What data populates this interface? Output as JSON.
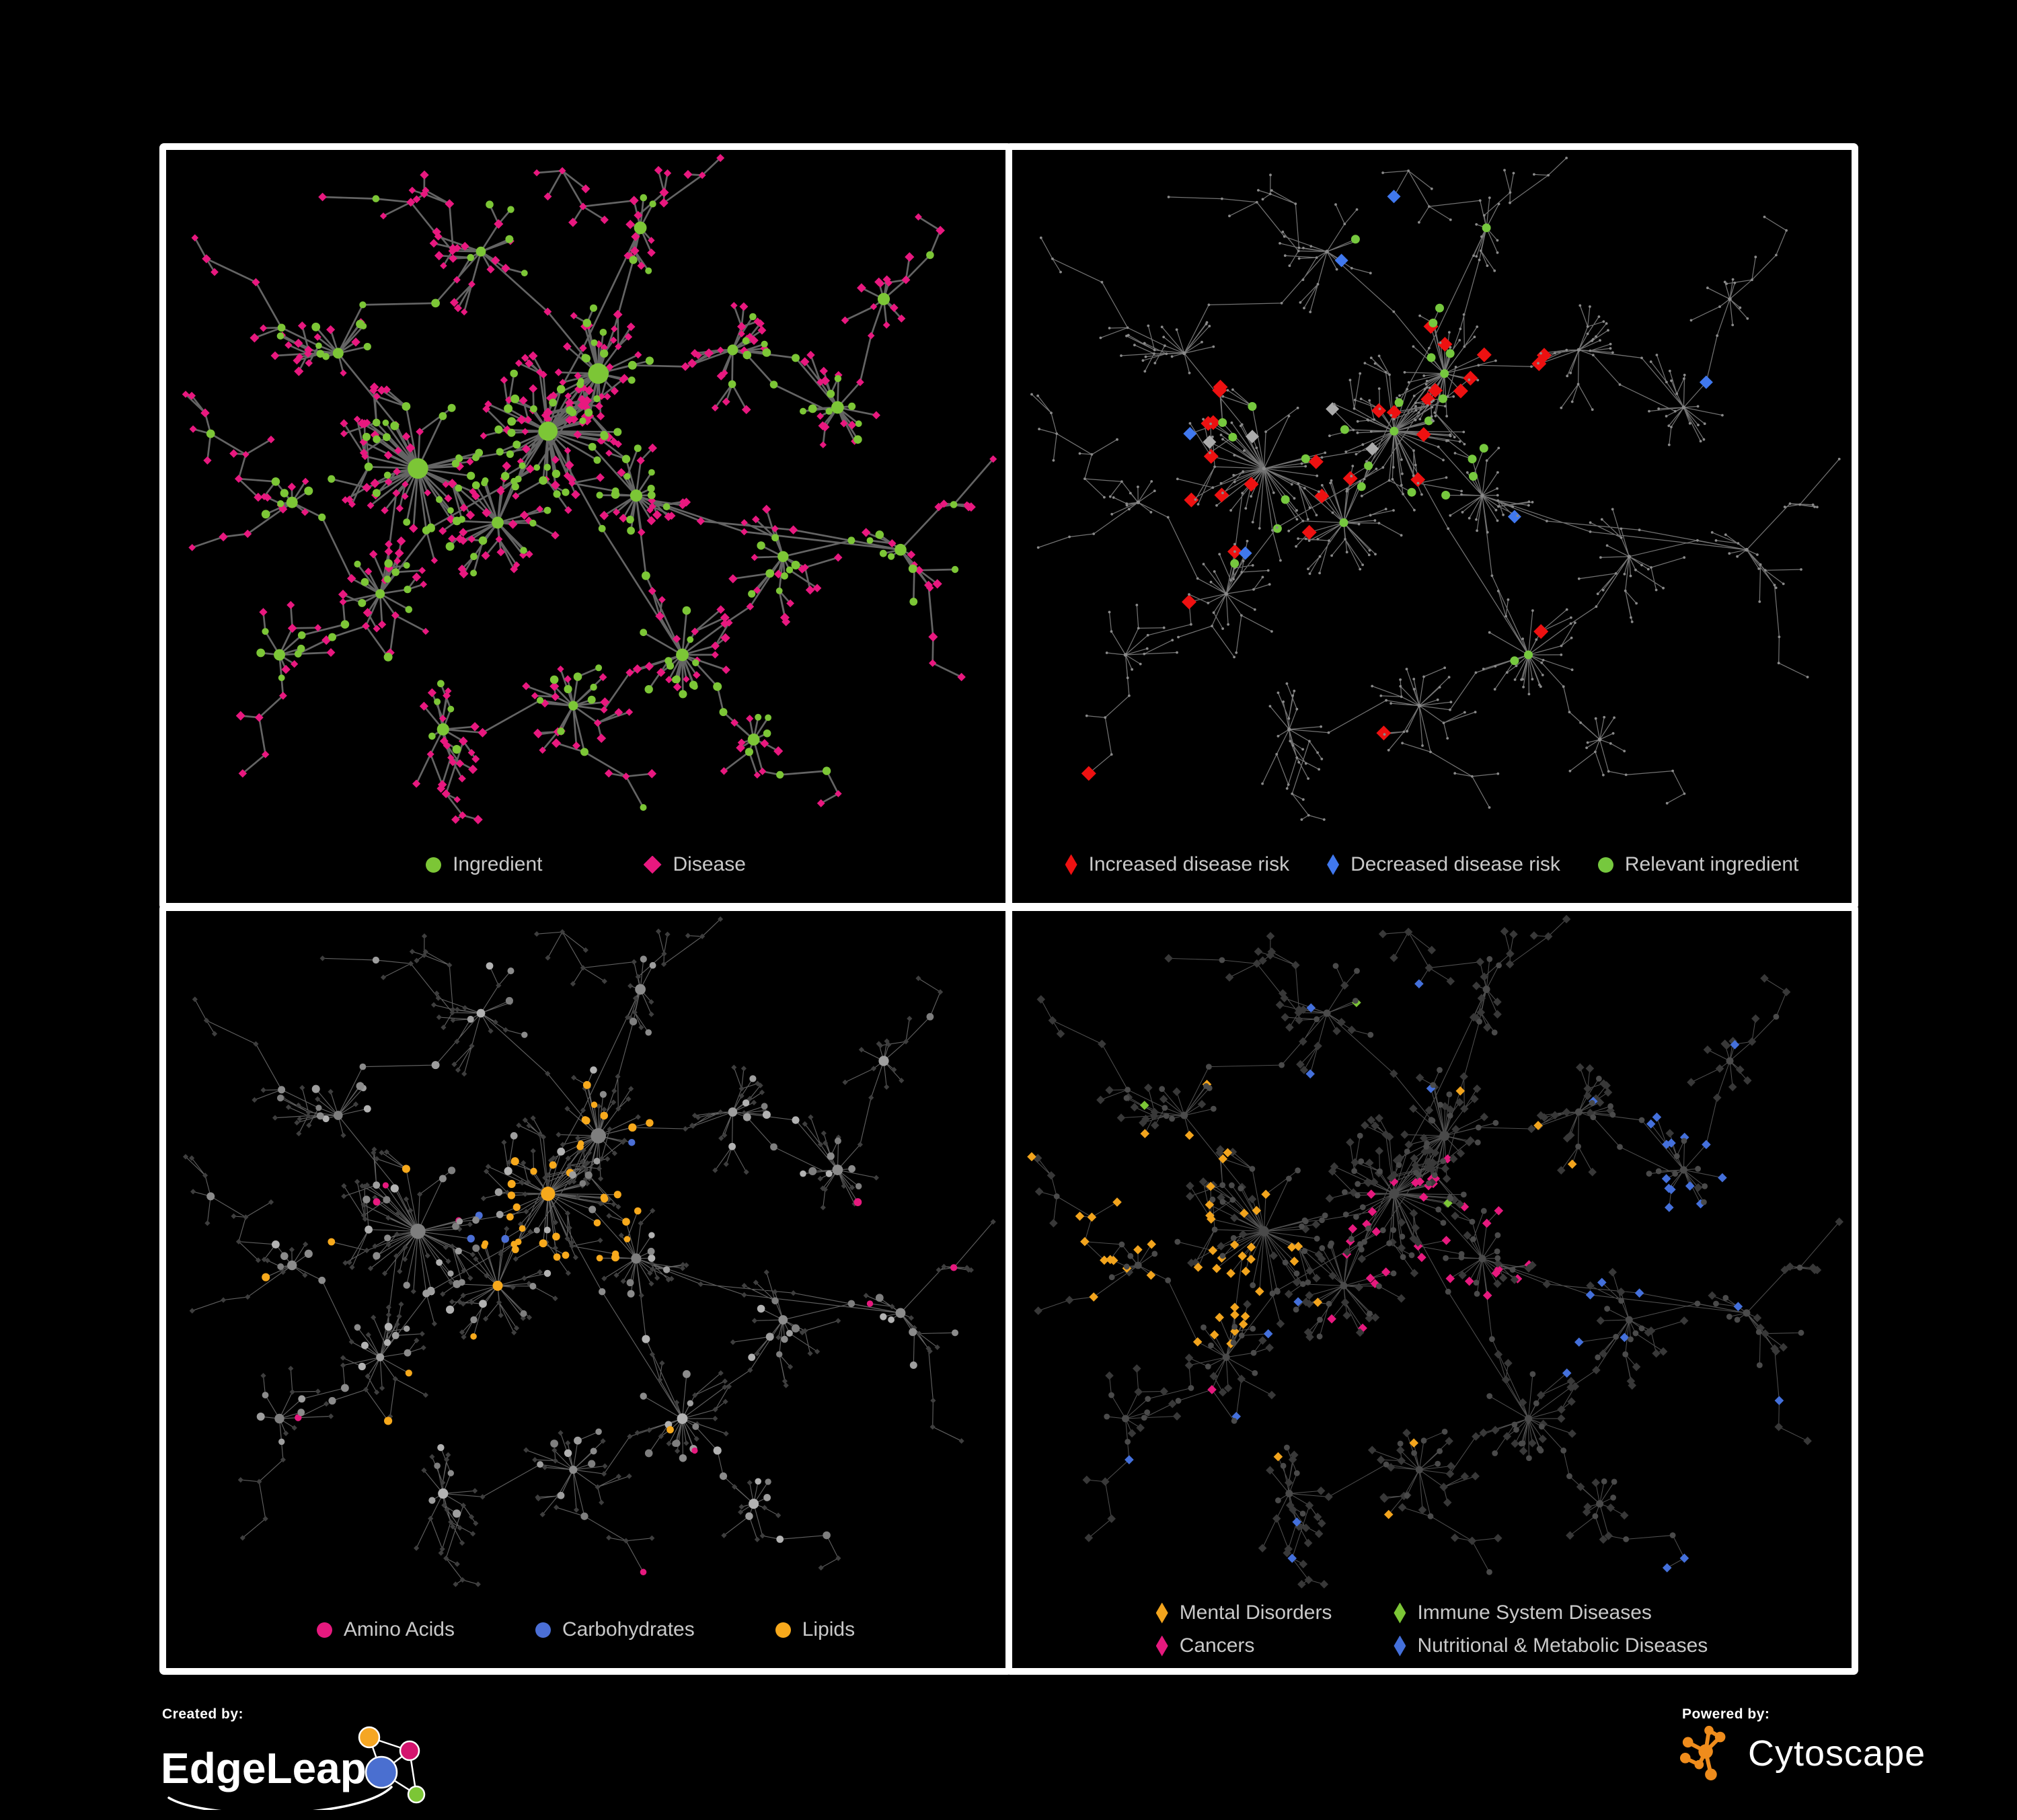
{
  "panels": [
    {
      "id": "ingredient-disease-network",
      "legend": [
        {
          "label": "Ingredient",
          "shape": "circle",
          "color": "#7CC636"
        },
        {
          "label": "Disease",
          "shape": "diamond",
          "color": "#E8187F"
        }
      ]
    },
    {
      "id": "disease-risk-network",
      "legend": [
        {
          "label": "Increased disease risk",
          "shape": "diamond",
          "color": "#EE1111"
        },
        {
          "label": "Decreased disease risk",
          "shape": "diamond",
          "color": "#4078EE"
        },
        {
          "label": "Relevant ingredient",
          "shape": "circle",
          "color": "#76C83E"
        }
      ]
    },
    {
      "id": "nutrient-class-network",
      "legend": [
        {
          "label": "Amino Acids",
          "shape": "circle",
          "color": "#E6197E"
        },
        {
          "label": "Carbohydrates",
          "shape": "circle",
          "color": "#4B6FD6"
        },
        {
          "label": "Lipids",
          "shape": "circle",
          "color": "#F7A91C"
        }
      ]
    },
    {
      "id": "disease-class-network",
      "legend": [
        {
          "label": "Mental Disorders",
          "shape": "diamond",
          "color": "#F2A41D"
        },
        {
          "label": "Immune System Diseases",
          "shape": "diamond",
          "color": "#7CC636"
        },
        {
          "label": "Cancers",
          "shape": "diamond",
          "color": "#E6197E"
        },
        {
          "label": "Nutritional & Metabolic Diseases",
          "shape": "diamond",
          "color": "#4470DB"
        }
      ]
    }
  ],
  "footer": {
    "created_by": "Created by:",
    "brand": "EdgeLeap",
    "powered_by": "Powered by:",
    "engine": "Cytoscape"
  },
  "style": {
    "canvas_bg": "#000000",
    "panel_border": "#FFFFFF",
    "legend_text": "#C9C9C9",
    "cytoscape_orange": "#EF8C1C",
    "edgeleap_logo_colors": {
      "orange": "#F5A623",
      "magenta": "#D4146E",
      "blue": "#4A6FD0",
      "green": "#7CC636"
    },
    "panels": [
      {
        "edge": "#696969",
        "ingredient": "#7CC636",
        "disease": "#E8187F"
      },
      {
        "edge": "#7E7E7E",
        "base": "#8A8A8A",
        "increased": "#EE1111",
        "decreased": "#4078EE",
        "neutral": "#ABABAB",
        "relevant": "#76C83E"
      },
      {
        "edge": "#9A9A9A",
        "base_circles": [
          "#9E9E9E",
          "#8B8B8B",
          "#B2B2B2",
          "#7E7E7E"
        ],
        "base_diamond": "#3E3E3E",
        "amino": "#E6197E",
        "carbs": "#4B6FD6",
        "lipids": "#F7A91C"
      },
      {
        "edge": "#9C9C9C",
        "base_circle": "#4A4A4A",
        "base_diamond": "#383838",
        "mental": "#F2A41D",
        "immune": "#7CC636",
        "cancers": "#E6197E",
        "nutritional": "#4470DB"
      }
    ]
  }
}
